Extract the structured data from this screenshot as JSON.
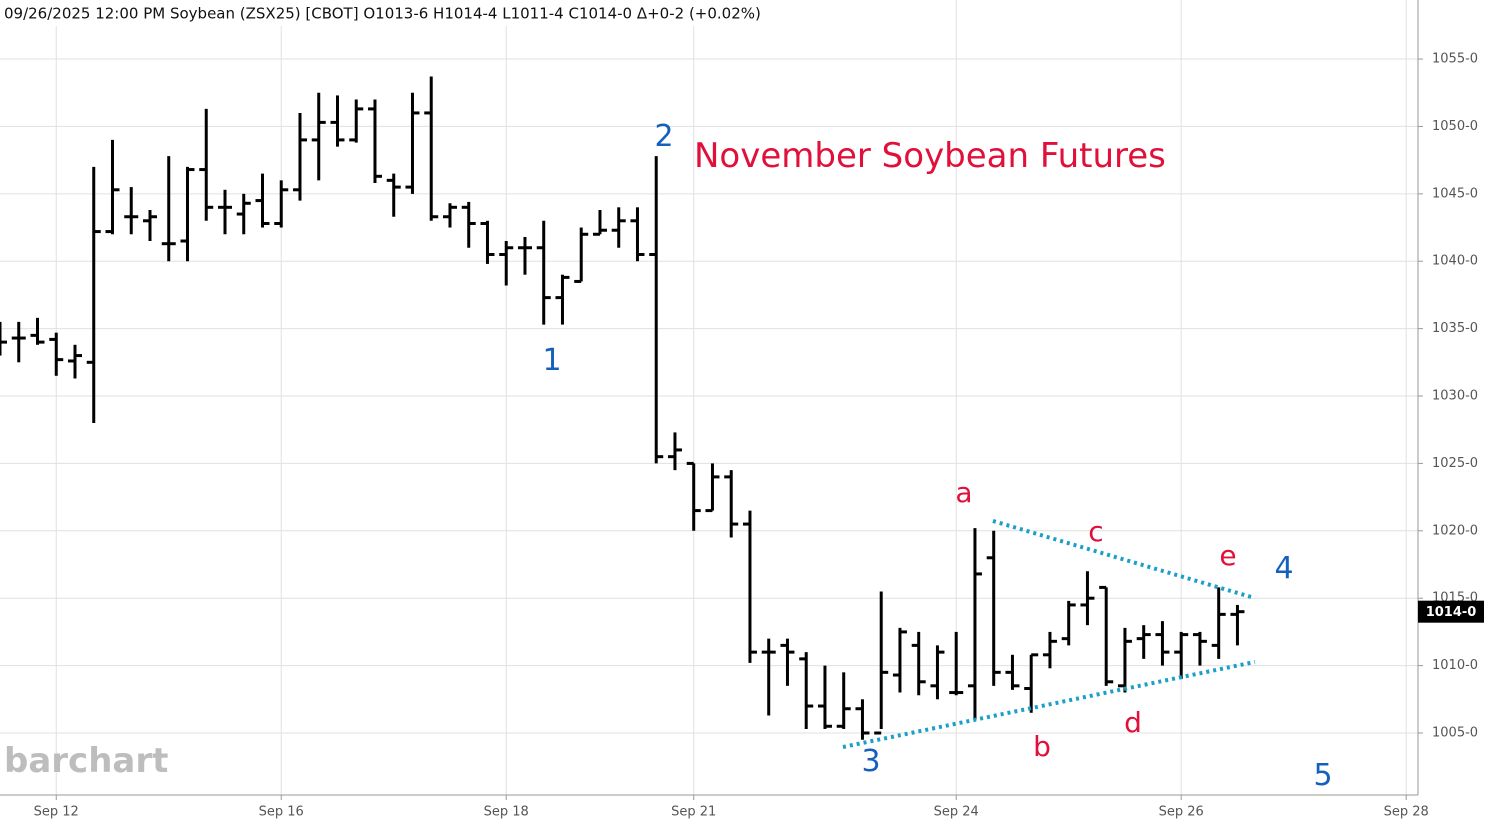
{
  "header": "09/26/2025  12:00 PM Soybean (ZSX25) [CBOT] O1013-6 H1014-4 L1011-4 C1014-0 Δ+0-2 (+0.02%)",
  "watermark": "barchart",
  "chart_data": {
    "type": "ohlc",
    "title": "November Soybean Futures",
    "color": "#000000",
    "grid": true,
    "x": [
      0,
      1,
      2,
      3,
      4,
      5,
      6,
      7,
      8,
      9,
      10,
      11,
      12,
      13,
      14,
      15,
      16,
      17,
      18,
      19,
      20,
      21,
      22,
      23,
      24,
      25,
      26,
      27,
      28,
      29,
      30,
      31,
      32,
      33,
      34,
      35,
      36,
      37,
      38,
      39,
      40,
      41,
      42,
      43,
      44,
      45,
      46,
      47,
      48,
      49,
      50,
      51,
      52,
      53,
      54,
      55,
      56,
      57,
      58,
      59,
      60,
      61,
      62,
      63,
      64,
      65,
      66
    ],
    "open": [
      1034,
      1034.3,
      1034.5,
      1034.2,
      1032.6,
      1032.5,
      1042.2,
      1043.3,
      1043,
      1041.3,
      1041.5,
      1046.8,
      1044,
      1043.5,
      1044.5,
      1042.8,
      1045.3,
      1049,
      1050.3,
      1049,
      1051.3,
      1046,
      1045.5,
      1051,
      1043.3,
      1044,
      1042.8,
      1040.5,
      1041,
      1041,
      1037.3,
      1038.5,
      1042,
      1042.3,
      1043,
      1040.5,
      1025.5,
      1025,
      1021.5,
      1024,
      1020.5,
      1011,
      1011.5,
      1010.5,
      1007,
      1005.5,
      1006.8,
      1005,
      1009.3,
      1011.5,
      1008.5,
      1008,
      1008.5,
      1018,
      1009.5,
      1008.3,
      1010.8,
      1012,
      1014.5,
      1015.8,
      1008.5,
      1012,
      1012.3,
      1011,
      1012.3,
      1011.5,
      1013.8
    ],
    "high": [
      1035.5,
      1035.5,
      1035.8,
      1034.7,
      1033.8,
      1047,
      1049,
      1045.5,
      1043.8,
      1047.8,
      1047,
      1051.3,
      1045.3,
      1045,
      1046.5,
      1046,
      1051,
      1052.5,
      1052.3,
      1052,
      1052,
      1046.5,
      1052.5,
      1053.7,
      1044.3,
      1044.4,
      1043,
      1041.5,
      1041.8,
      1043,
      1039,
      1042.5,
      1043.8,
      1044,
      1044,
      1047.8,
      1027.3,
      1025,
      1025,
      1024.5,
      1021.5,
      1012,
      1012,
      1011,
      1010,
      1009.5,
      1007.5,
      1015.5,
      1012.8,
      1012.5,
      1011.5,
      1012.5,
      1020.2,
      1020,
      1010.8,
      1010.8,
      1012.5,
      1014.8,
      1017,
      1015.8,
      1012.8,
      1013,
      1013.3,
      1012.5,
      1012.5,
      1015.8,
      1014.5
    ],
    "low": [
      1033,
      1032.5,
      1033.8,
      1031.5,
      1031.3,
      1028,
      1042,
      1042,
      1041.5,
      1040,
      1040,
      1043,
      1042,
      1042,
      1042.5,
      1042.5,
      1044.5,
      1046,
      1048.5,
      1048.8,
      1045.8,
      1043.3,
      1045,
      1043,
      1042.5,
      1041,
      1039.8,
      1038.2,
      1039,
      1035.3,
      1035.3,
      1038.5,
      1042,
      1041,
      1040,
      1025,
      1024.5,
      1020,
      1021.5,
      1019.5,
      1010.2,
      1006.3,
      1008.5,
      1005.3,
      1005.3,
      1005.3,
      1004.5,
      1005.3,
      1008,
      1007.8,
      1007.5,
      1007.8,
      1006,
      1008.5,
      1008.2,
      1006.5,
      1009.8,
      1011.5,
      1013,
      1008.5,
      1008,
      1010.5,
      1010,
      1009,
      1010,
      1010.5,
      1011.5
    ],
    "close": [
      1034,
      1034.3,
      1034,
      1032.7,
      1033,
      1042.2,
      1045.3,
      1043.3,
      1043.3,
      1041.3,
      1046.8,
      1044,
      1044,
      1044.3,
      1042.8,
      1045.3,
      1049,
      1050.3,
      1049,
      1051.3,
      1046.3,
      1045.5,
      1051,
      1043.3,
      1044,
      1042.8,
      1040.5,
      1041,
      1041,
      1037.3,
      1038.8,
      1042,
      1042.3,
      1043,
      1040.5,
      1025.5,
      1026,
      1021.5,
      1024,
      1020.5,
      1011,
      1011,
      1011,
      1007,
      1005.5,
      1006.8,
      1005,
      1009.5,
      1012.5,
      1008.8,
      1011,
      1008,
      1016.8,
      1009.5,
      1008.5,
      1010.8,
      1011.8,
      1014.5,
      1015,
      1008.8,
      1011.8,
      1012.3,
      1011,
      1012.3,
      1011.8,
      1013.8,
      1014
    ],
    "xlim": [
      0,
      75.63
    ],
    "ylim": [
      1000.4,
      1059.38
    ],
    "xticks": [
      {
        "value": 3,
        "label": "Sep 12"
      },
      {
        "value": 15,
        "label": "Sep 16"
      },
      {
        "value": 27,
        "label": "Sep 18"
      },
      {
        "value": 37,
        "label": "Sep 21"
      },
      {
        "value": 51,
        "label": "Sep 24"
      },
      {
        "value": 63,
        "label": "Sep 26"
      },
      {
        "value": 75,
        "label": "Sep 28"
      }
    ],
    "yticks": [
      {
        "value": 1005,
        "label": "1005-0"
      },
      {
        "value": 1010,
        "label": "1010-0"
      },
      {
        "value": 1015,
        "label": "1015-0"
      },
      {
        "value": 1020,
        "label": "1020-0"
      },
      {
        "value": 1025,
        "label": "1025-0"
      },
      {
        "value": 1030,
        "label": "1030-0"
      },
      {
        "value": 1035,
        "label": "1035-0"
      },
      {
        "value": 1040,
        "label": "1040-0"
      },
      {
        "value": 1045,
        "label": "1045-0"
      },
      {
        "value": 1050,
        "label": "1050-0"
      },
      {
        "value": 1055,
        "label": "1055-0"
      }
    ],
    "last": {
      "value": 1014,
      "label": "1014-0"
    },
    "trendlines": [
      {
        "color": "#1a9fc9",
        "x": [
          44.96,
          66.93
        ],
        "y": [
          1003.96,
          1010.27
        ]
      },
      {
        "color": "#1a9fc9",
        "x": [
          52.96,
          66.93
        ],
        "y": [
          1020.73,
          1015.01
        ]
      }
    ],
    "waves": [
      "1",
      "2",
      "3",
      "4",
      "5"
    ],
    "letters": [
      "a",
      "b",
      "c",
      "d",
      "e"
    ]
  }
}
